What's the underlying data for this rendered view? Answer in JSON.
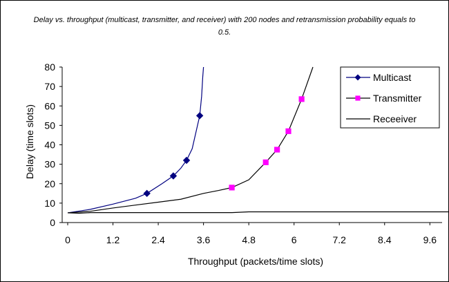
{
  "chart_data": {
    "type": "line",
    "title": "Delay vs. throughput (multicast, transmitter, and receiver) with 200 nodes and retransmission probability equals to 0.5.",
    "xlabel": "Throughput (packets/time slots)",
    "ylabel": "Delay (time slots)",
    "xlim": [
      0,
      10.4
    ],
    "ylim": [
      0,
      80
    ],
    "xticks": [
      "0",
      "1.2",
      "2.4",
      "3.6",
      "4.8",
      "6",
      "7.2",
      "8.4",
      "9.6"
    ],
    "yticks": [
      "0",
      "10",
      "20",
      "30",
      "40",
      "50",
      "60",
      "70",
      "80"
    ],
    "grid": false,
    "legend_position": "top-right",
    "series": [
      {
        "name": "Multicast",
        "color": "#000080",
        "marker": "diamond",
        "line": [
          [
            0,
            5
          ],
          [
            0.6,
            6.8
          ],
          [
            1.2,
            9.5
          ],
          [
            1.8,
            12.5
          ],
          [
            2.1,
            15
          ],
          [
            2.5,
            20
          ],
          [
            2.8,
            24
          ],
          [
            3.0,
            28
          ],
          [
            3.15,
            32
          ],
          [
            3.3,
            38
          ],
          [
            3.5,
            55
          ],
          [
            3.55,
            65
          ],
          [
            3.58,
            75
          ],
          [
            3.6,
            80
          ]
        ],
        "markers": [
          [
            2.1,
            15
          ],
          [
            2.8,
            24
          ],
          [
            3.15,
            32
          ],
          [
            3.5,
            55
          ]
        ]
      },
      {
        "name": "Transmitter",
        "color": "#000000",
        "marker_color": "#ff00ff",
        "marker": "square",
        "line": [
          [
            0,
            5
          ],
          [
            0.6,
            5.8
          ],
          [
            1.2,
            7.5
          ],
          [
            1.8,
            9
          ],
          [
            2.4,
            10.5
          ],
          [
            3.0,
            12
          ],
          [
            3.6,
            15
          ],
          [
            4.0,
            16.5
          ],
          [
            4.35,
            18
          ],
          [
            4.8,
            22
          ],
          [
            5.25,
            31
          ],
          [
            5.55,
            37.5
          ],
          [
            5.85,
            47
          ],
          [
            6.2,
            63.5
          ],
          [
            6.5,
            80
          ]
        ],
        "markers": [
          [
            4.35,
            18
          ],
          [
            5.25,
            31
          ],
          [
            5.55,
            37.5
          ],
          [
            5.85,
            47
          ],
          [
            6.2,
            63.5
          ]
        ]
      },
      {
        "name": "Receeiver",
        "color": "#000000",
        "marker": "none",
        "line": [
          [
            0,
            5
          ],
          [
            0.3,
            4.8
          ],
          [
            0.6,
            5.1
          ],
          [
            3.6,
            5.1
          ],
          [
            4.35,
            5.1
          ],
          [
            4.8,
            5.5
          ],
          [
            9.6,
            5.5
          ],
          [
            10.2,
            5.5
          ],
          [
            10.4,
            6.2
          ]
        ],
        "markers": []
      }
    ]
  }
}
